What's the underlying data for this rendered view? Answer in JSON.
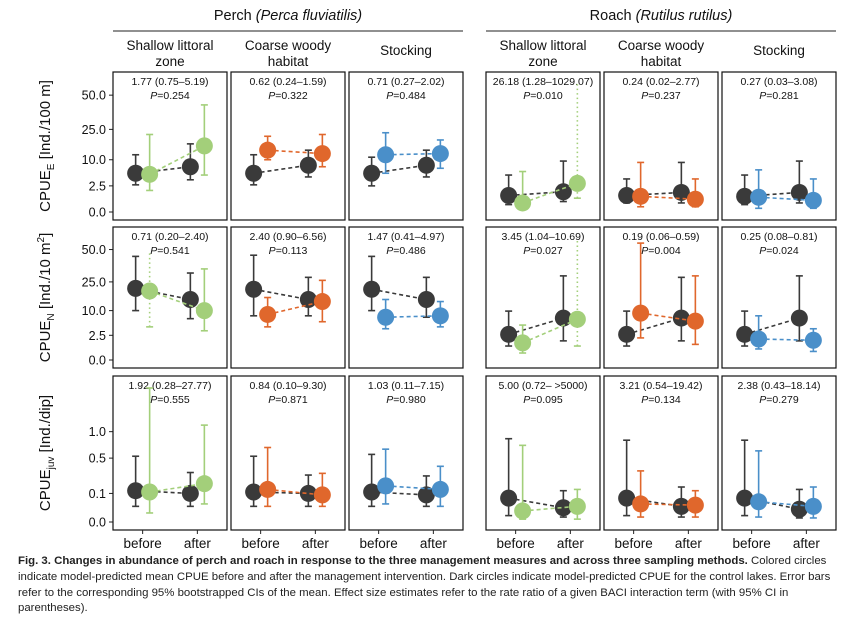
{
  "figure": {
    "caption_label": "Fig. 3.",
    "caption_bold": "Changes in abundance of perch and roach in response to the three management measures and across three sampling methods.",
    "caption_text": "Colored circles indicate model-predicted mean CPUE before and after the management intervention. Dark circles indicate model-predicted CPUE for the control lakes. Error bars refer to the corresponding 95% bootstrapped CIs of the mean. Effect size estimates refer to the rate ratio of a given BACI interaction term (with 95% CI in parentheses)."
  },
  "colors": {
    "control": "#3a3a3a",
    "shallow": "#a3cf7a",
    "woody": "#e0672c",
    "stocking": "#4a8fc9"
  },
  "chart_data": {
    "type": "scatter",
    "species": [
      {
        "name": "Perch",
        "latin": "Perca fluviatilis"
      },
      {
        "name": "Roach",
        "latin": "Rutilus rutilus"
      }
    ],
    "measures": [
      "Shallow littoral zone",
      "Coarse woody habitat",
      "Stocking"
    ],
    "x_categories": [
      "before",
      "after"
    ],
    "rows": [
      {
        "label_main": "CPUE",
        "label_sub": "E",
        "label_tail": " [Ind./100 m]",
        "label_sup": "",
        "label_end": "",
        "scale": "sqrt",
        "ylim": [
          0,
          60
        ],
        "ticks": [
          0.0,
          2.5,
          10.0,
          25.0,
          50.0
        ],
        "tick_labels": [
          "0.0",
          "2.5",
          "10.0",
          "25.0",
          "50.0"
        ]
      },
      {
        "label_main": "CPUE",
        "label_sub": "N",
        "label_tail": " [Ind./10 m",
        "label_sup": "2",
        "label_end": "]",
        "scale": "sqrt",
        "ylim": [
          0,
          60
        ],
        "ticks": [
          0.0,
          2.5,
          10.0,
          25.0,
          50.0
        ],
        "tick_labels": [
          "0.0",
          "2.5",
          "10.0",
          "25.0",
          "50.0"
        ]
      },
      {
        "label_main": "CPUE",
        "label_sub": "juv",
        "label_tail": " [Ind./dip]",
        "label_sup": "",
        "label_end": "",
        "scale": "sqrt",
        "ylim": [
          0,
          2.2
        ],
        "ticks": [
          0.0,
          0.1,
          0.5,
          1.0
        ],
        "tick_labels": [
          "0.0",
          "0.1",
          "0.5",
          "1.0"
        ]
      }
    ],
    "panels": [
      [
        {
          "effect": "1.77 (0.75–5.19)",
          "p": "0.254",
          "control": {
            "before": 5.5,
            "after": 7.5,
            "before_ci": [
              2.7,
              12.0
            ],
            "after_ci": [
              3.8,
              17.0
            ]
          },
          "treatment": {
            "before": 5.2,
            "after": 16.0,
            "before_ci": [
              1.7,
              22.0
            ],
            "after_ci": [
              5.0,
              42.0
            ],
            "extended": "none"
          }
        },
        {
          "effect": "0.62 (0.24–1.59)",
          "p": "0.322",
          "control": {
            "before": 5.5,
            "after": 8.0,
            "before_ci": [
              2.7,
              12.0
            ],
            "after_ci": [
              4.5,
              14.0
            ]
          },
          "treatment": {
            "before": 14.0,
            "after": 12.5,
            "before_ci": [
              10.0,
              21.0
            ],
            "after_ci": [
              7.5,
              22.0
            ],
            "extended": "none"
          }
        },
        {
          "effect": "0.71 (0.27–2.02)",
          "p": "0.484",
          "control": {
            "before": 5.5,
            "after": 8.0,
            "before_ci": [
              2.5,
              11.0
            ],
            "after_ci": [
              4.5,
              14.0
            ]
          },
          "treatment": {
            "before": 12.0,
            "after": 12.5,
            "before_ci": [
              5.5,
              23.0
            ],
            "after_ci": [
              7.0,
              19.0
            ],
            "extended": "none"
          }
        }
      ],
      [
        {
          "effect": "0.71 (0.20–2.40)",
          "p": "0.541",
          "control": {
            "before": 21.0,
            "after": 15.0,
            "before_ci": [
              10.0,
              44.0
            ],
            "after_ci": [
              7.0,
              31.0
            ]
          },
          "treatment": {
            "before": 19.5,
            "after": 10.0,
            "before_ci": [
              4.5,
              48.0
            ],
            "after_ci": [
              3.5,
              34.0
            ],
            "extended": "before"
          }
        },
        {
          "effect": "2.40 (0.90–6.56)",
          "p": "0.113",
          "control": {
            "before": 20.5,
            "after": 15.0,
            "before_ci": [
              8.0,
              45.0
            ],
            "after_ci": [
              8.0,
              28.0
            ]
          },
          "treatment": {
            "before": 8.5,
            "after": 14.0,
            "before_ci": [
              4.5,
              16.0
            ],
            "after_ci": [
              6.0,
              26.0
            ],
            "extended": "none"
          }
        },
        {
          "effect": "1.47 (0.41–4.97)",
          "p": "0.486",
          "control": {
            "before": 20.5,
            "after": 15.0,
            "before_ci": [
              10.0,
              44.0
            ],
            "after_ci": [
              7.5,
              28.0
            ]
          },
          "treatment": {
            "before": 7.5,
            "after": 8.0,
            "before_ci": [
              4.0,
              15.0
            ],
            "after_ci": [
              4.5,
              14.0
            ],
            "extended": "none"
          }
        }
      ],
      [
        {
          "effect": "1.92 (0.28–27.77)",
          "p": "0.555",
          "control": {
            "before": 0.12,
            "after": 0.1,
            "before_ci": [
              0.03,
              0.53
            ],
            "after_ci": [
              0.03,
              0.3
            ]
          },
          "treatment": {
            "before": 0.11,
            "after": 0.18,
            "before_ci": [
              0.01,
              2.2
            ],
            "after_ci": [
              0.04,
              1.15
            ],
            "extended": "none"
          }
        },
        {
          "effect": "0.84 (0.10–9.30)",
          "p": "0.871",
          "control": {
            "before": 0.11,
            "after": 0.1,
            "before_ci": [
              0.03,
              0.53
            ],
            "after_ci": [
              0.03,
              0.27
            ]
          },
          "treatment": {
            "before": 0.13,
            "after": 0.09,
            "before_ci": [
              0.03,
              0.68
            ],
            "after_ci": [
              0.03,
              0.29
            ]
          }
        },
        {
          "effect": "1.03 (0.11–7.15)",
          "p": "0.980",
          "control": {
            "before": 0.11,
            "after": 0.09,
            "before_ci": [
              0.03,
              0.56
            ],
            "after_ci": [
              0.03,
              0.26
            ]
          },
          "treatment": {
            "before": 0.16,
            "after": 0.13,
            "before_ci": [
              0.04,
              0.65
            ],
            "after_ci": [
              0.03,
              0.38
            ]
          }
        }
      ],
      [
        {
          "effect": "26.18 (1.28–1029.07)",
          "p": "0.010",
          "control": {
            "before": 1.0,
            "after": 1.5,
            "before_ci": [
              0.2,
              5.0
            ],
            "after_ci": [
              0.4,
              9.5
            ]
          },
          "treatment": {
            "before": 0.3,
            "after": 3.0,
            "before_ci": [
              0.05,
              6.0
            ],
            "after_ci": [
              0.7,
              60.0
            ],
            "extended": "after"
          }
        },
        {
          "effect": "0.24 (0.02–2.77)",
          "p": "0.237",
          "control": {
            "before": 1.0,
            "after": 1.4,
            "before_ci": [
              0.3,
              4.0
            ],
            "after_ci": [
              0.3,
              9.0
            ]
          },
          "treatment": {
            "before": 0.9,
            "after": 0.6,
            "before_ci": [
              0.1,
              9.0
            ],
            "after_ci": [
              0.1,
              4.0
            ]
          }
        },
        {
          "effect": "0.27 (0.03–3.08)",
          "p": "0.281",
          "control": {
            "before": 0.9,
            "after": 1.4,
            "before_ci": [
              0.2,
              5.0
            ],
            "after_ci": [
              0.3,
              9.5
            ]
          },
          "treatment": {
            "before": 0.8,
            "after": 0.5,
            "before_ci": [
              0.05,
              6.5
            ],
            "after_ci": [
              0.05,
              4.0
            ]
          }
        }
      ],
      [
        {
          "effect": "3.45 (1.04–10.69)",
          "p": "0.027",
          "control": {
            "before": 2.7,
            "after": 7.2,
            "before_ci": [
              0.8,
              9.8
            ],
            "after_ci": [
              1.5,
              29.0
            ]
          },
          "treatment": {
            "before": 1.2,
            "after": 6.8,
            "before_ci": [
              0.2,
              5.0
            ],
            "after_ci": [
              0.8,
              60.0
            ],
            "extended": "after"
          }
        },
        {
          "effect": "0.19 (0.06–0.59)",
          "p": "0.004",
          "control": {
            "before": 2.7,
            "after": 7.2,
            "before_ci": [
              0.8,
              9.8
            ],
            "after_ci": [
              1.5,
              28.0
            ]
          },
          "treatment": {
            "before": 9.0,
            "after": 6.2,
            "before_ci": [
              2.0,
              56.0
            ],
            "after_ci": [
              1.0,
              29.0
            ]
          }
        },
        {
          "effect": "0.25 (0.08–0.81)",
          "p": "0.024",
          "control": {
            "before": 2.7,
            "after": 7.2,
            "before_ci": [
              0.8,
              9.8
            ],
            "after_ci": [
              1.5,
              29.0
            ]
          },
          "treatment": {
            "before": 1.8,
            "after": 1.6,
            "before_ci": [
              0.5,
              8.0
            ],
            "after_ci": [
              0.3,
              4.0
            ]
          }
        }
      ],
      [
        {
          "effect": "5.00 (0.72– >5000)",
          "p": "0.095",
          "control": {
            "before": 0.07,
            "after": 0.025,
            "before_ci": [
              0.005,
              0.85
            ],
            "after_ci": [
              0.003,
              0.12
            ]
          },
          "treatment": {
            "before": 0.015,
            "after": 0.03,
            "before_ci": [
              0.001,
              0.72
            ],
            "after_ci": [
              0.001,
              0.13
            ]
          }
        },
        {
          "effect": "3.21 (0.54–19.42)",
          "p": "0.134",
          "control": {
            "before": 0.07,
            "after": 0.03,
            "before_ci": [
              0.005,
              0.82
            ],
            "after_ci": [
              0.003,
              0.15
            ]
          },
          "treatment": {
            "before": 0.04,
            "after": 0.035,
            "before_ci": [
              0.003,
              0.32
            ],
            "after_ci": [
              0.003,
              0.12
            ]
          }
        },
        {
          "effect": "2.38 (0.43–18.14)",
          "p": "0.279",
          "control": {
            "before": 0.07,
            "after": 0.02,
            "before_ci": [
              0.005,
              0.82
            ],
            "after_ci": [
              0.002,
              0.13
            ]
          },
          "treatment": {
            "before": 0.05,
            "after": 0.03,
            "before_ci": [
              0.003,
              0.62
            ],
            "after_ci": [
              0.002,
              0.15
            ]
          }
        }
      ]
    ]
  }
}
